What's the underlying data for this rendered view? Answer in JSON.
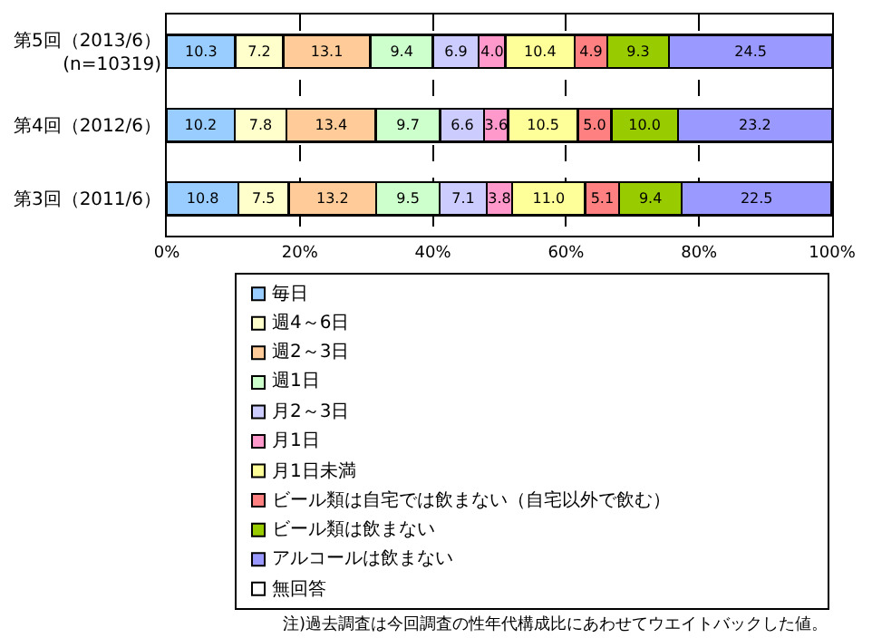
{
  "chart_data": {
    "type": "bar",
    "orientation": "horizontal",
    "stacked": true,
    "categories": [
      "第5回（2013/6）\n(n=10319)",
      "第4回（2012/6）",
      "第3回（2011/6）"
    ],
    "series": [
      {
        "name": "毎日",
        "color": "#99ccff",
        "values": [
          10.3,
          10.2,
          10.8
        ],
        "value_labels": [
          "10.3",
          "10.2",
          "10.8"
        ]
      },
      {
        "name": "週4～6日",
        "color": "#ffffcc",
        "values": [
          7.2,
          7.8,
          7.5
        ],
        "value_labels": [
          "7.2",
          "7.8",
          "7.5"
        ]
      },
      {
        "name": "週2～3日",
        "color": "#ffcc99",
        "values": [
          13.1,
          13.4,
          13.2
        ],
        "value_labels": [
          "13.1",
          "13.4",
          "13.2"
        ]
      },
      {
        "name": "週1日",
        "color": "#ccffcc",
        "values": [
          9.4,
          9.7,
          9.5
        ],
        "value_labels": [
          "9.4",
          "9.7",
          "9.5"
        ]
      },
      {
        "name": "月2～3日",
        "color": "#ccccff",
        "values": [
          6.9,
          6.6,
          7.1
        ],
        "value_labels": [
          "6.9",
          "6.6",
          "7.1"
        ]
      },
      {
        "name": "月1日",
        "color": "#ff99cc",
        "values": [
          4.0,
          3.6,
          3.8
        ],
        "value_labels": [
          "4.0",
          "3.6",
          "3.8"
        ]
      },
      {
        "name": "月1日未満",
        "color": "#ffff99",
        "values": [
          10.4,
          10.5,
          11.0
        ],
        "value_labels": [
          "10.4",
          "10.5",
          "11.0"
        ]
      },
      {
        "name": "ビール類は自宅では飲まない（自宅以外で飲む）",
        "color": "#ff8080",
        "values": [
          4.9,
          5.0,
          5.1
        ],
        "value_labels": [
          "4.9",
          "5.0",
          "5.1"
        ]
      },
      {
        "name": "ビール類は飲まない",
        "color": "#99cc00",
        "values": [
          9.3,
          10.0,
          9.4
        ],
        "value_labels": [
          "9.3",
          "10.0",
          "9.4"
        ]
      },
      {
        "name": "アルコールは飲まない",
        "color": "#9999ff",
        "values": [
          24.5,
          23.2,
          22.5
        ],
        "value_labels": [
          "24.5",
          "23.2",
          "22.5"
        ]
      },
      {
        "name": "無回答",
        "color": "#ffffff",
        "values": [
          0,
          0,
          0
        ],
        "value_labels": [
          null,
          null,
          null
        ]
      }
    ],
    "xlim": [
      0,
      100
    ],
    "xticks": [
      {
        "value": 0,
        "label": "0%"
      },
      {
        "value": 20,
        "label": "20%"
      },
      {
        "value": 40,
        "label": "40%"
      },
      {
        "value": 60,
        "label": "60%"
      },
      {
        "value": 80,
        "label": "80%"
      },
      {
        "value": 100,
        "label": "100%"
      }
    ],
    "grid": "x",
    "legend": "bottom",
    "annotations": [
      "注)過去調査は今回調査の性年代構成比にあわせてウエイトバックした値。"
    ]
  }
}
